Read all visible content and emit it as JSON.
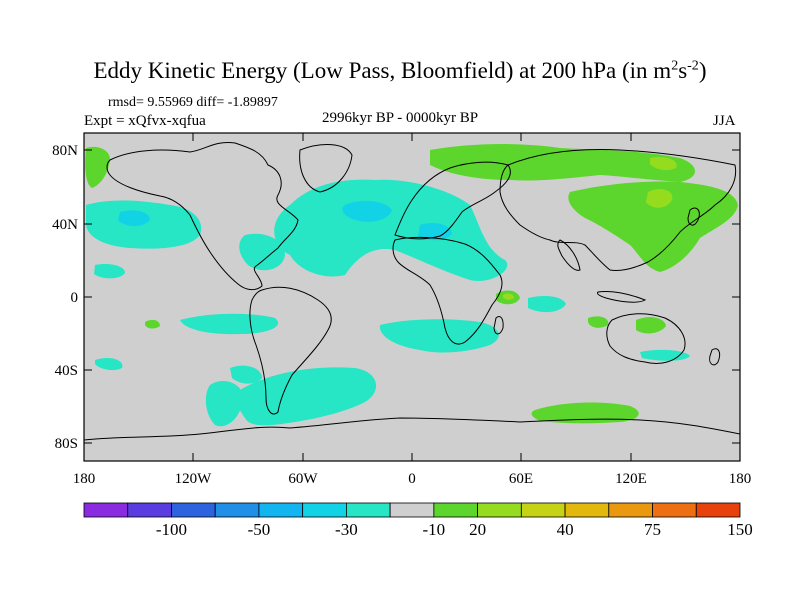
{
  "title": {
    "main": "Eddy Kinetic Energy (Low Pass, Bloomfield) at 200 hPa (in m",
    "sup1": "2",
    "mid": "s",
    "sup2": "-2",
    "end": ")"
  },
  "subtitle": {
    "stats": "rmsd= 9.55969 diff= -1.89897",
    "expt": "Expt = xQfvx-xqfua",
    "period": "2996kyr BP - 0000kyr BP",
    "season": "JJA"
  },
  "axes": {
    "y_ticks": [
      "80N",
      "40N",
      "0",
      "40S",
      "80S"
    ],
    "x_ticks": [
      "180",
      "120W",
      "60W",
      "0",
      "60E",
      "120E",
      "180"
    ]
  },
  "colorbar": {
    "colors": [
      "#8a2be2",
      "#5a3ce0",
      "#2e63e0",
      "#1f8fe8",
      "#12b5ef",
      "#12d3e6",
      "#26e6c5",
      "#cfcfcf",
      "#5cd62c",
      "#96dc1e",
      "#c6d214",
      "#e2b80c",
      "#ea980f",
      "#ee6e12",
      "#e8420c"
    ],
    "labels": [
      "-100",
      "-50",
      "-30",
      "-10",
      "20",
      "40",
      "75",
      "150"
    ]
  },
  "map_colors": {
    "ocean_background": "#cfcfcf",
    "negative_fill": "#26e6c5",
    "negative_core": "#12d3e6",
    "positive_fill": "#5cd62c",
    "positive_core": "#96dc1e",
    "coastline": "#000000"
  }
}
